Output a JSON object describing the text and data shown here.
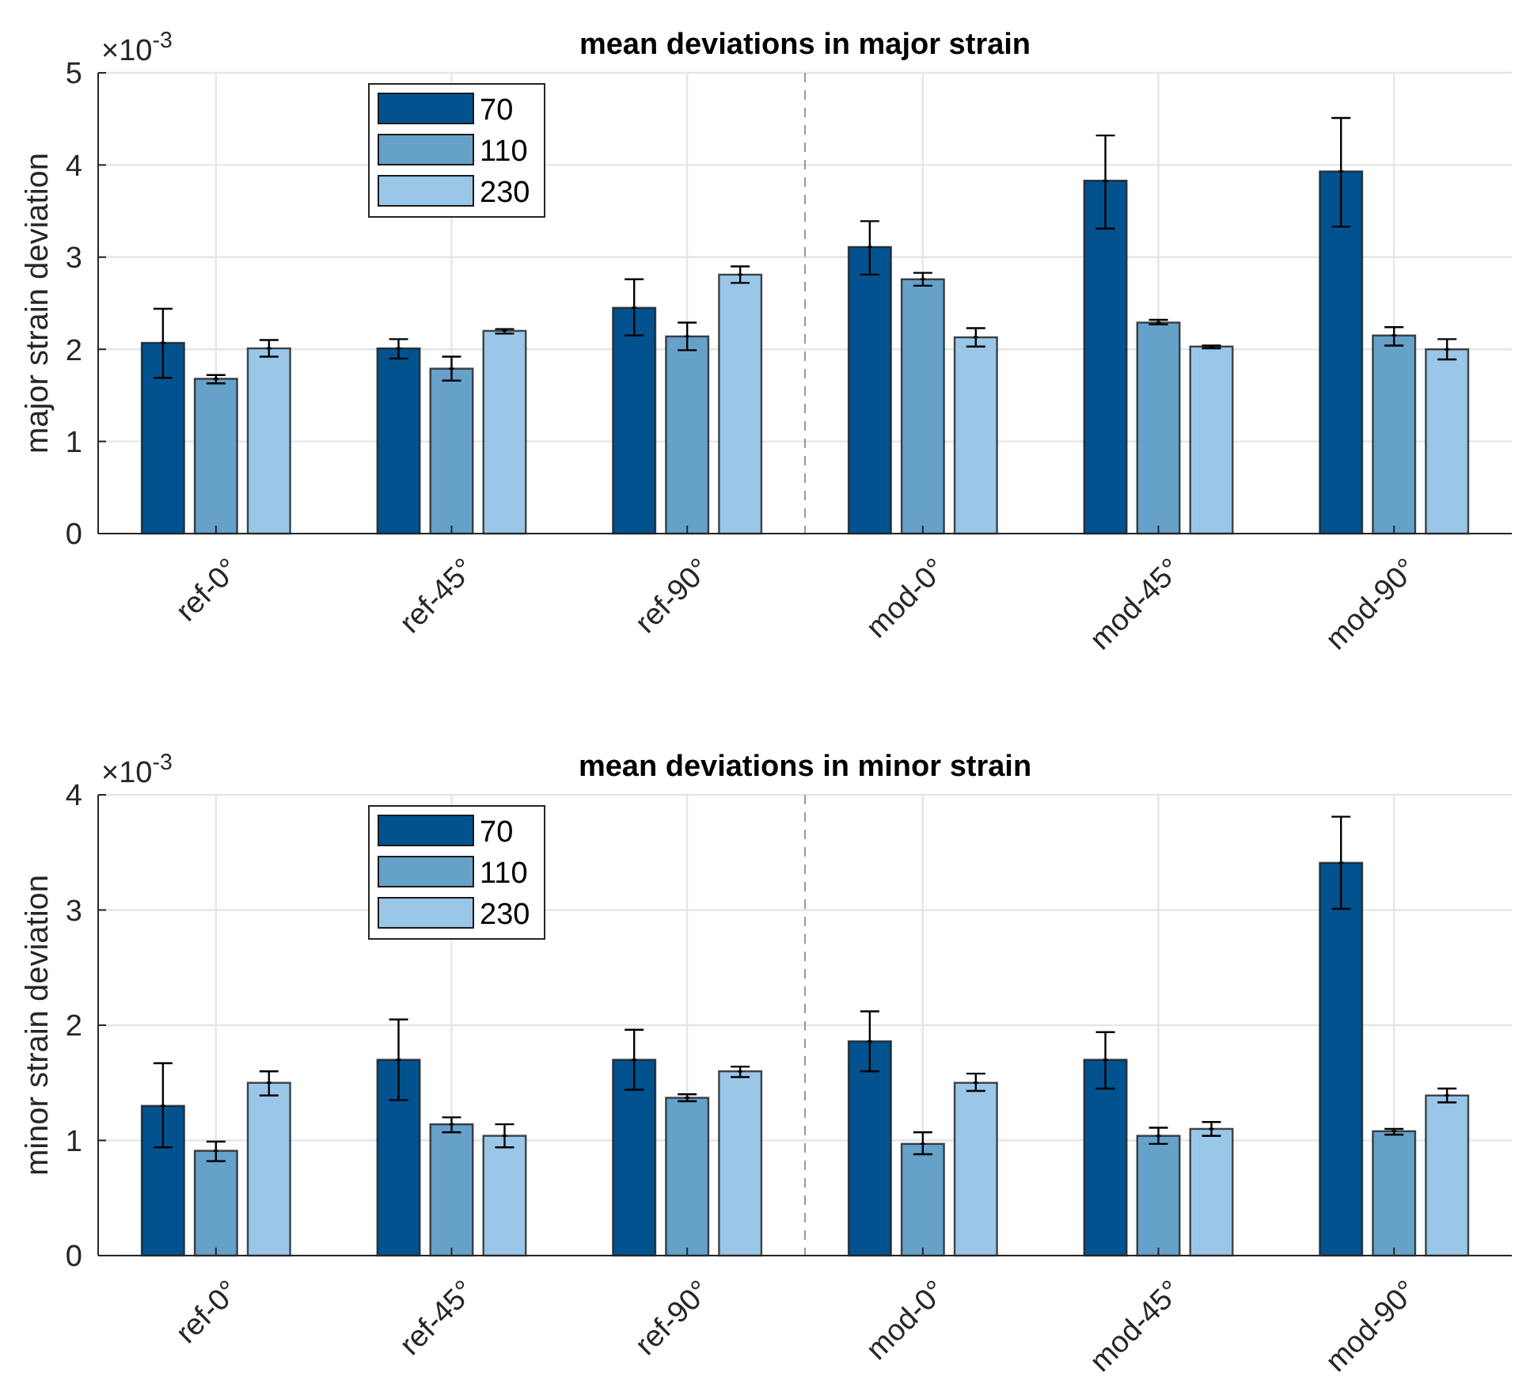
{
  "chart_data": [
    {
      "type": "bar",
      "title": "mean deviations in major strain",
      "ylabel": "major strain deviation",
      "annotations": [
        "×10$^{-3}$"
      ],
      "categories": [
        "ref-0°",
        "ref-45°",
        "ref-90°",
        "mod-0°",
        "mod-45°",
        "mod-90°"
      ],
      "series": [
        {
          "name": "70",
          "color": "#02528f",
          "values": [
            2.07,
            2.01,
            2.45,
            3.11,
            3.83,
            3.93
          ],
          "errors": [
            [
              1.69,
              2.44
            ],
            [
              1.9,
              2.11
            ],
            [
              2.15,
              2.76
            ],
            [
              2.81,
              3.39
            ],
            [
              3.31,
              4.32
            ],
            [
              3.33,
              4.51
            ]
          ]
        },
        {
          "name": "110",
          "color": "#65a1c9",
          "values": [
            1.68,
            1.79,
            2.14,
            2.76,
            2.29,
            2.15
          ],
          "errors": [
            [
              1.63,
              1.72
            ],
            [
              1.66,
              1.92
            ],
            [
              1.99,
              2.29
            ],
            [
              2.69,
              2.83
            ],
            [
              2.27,
              2.32
            ],
            [
              2.04,
              2.24
            ]
          ]
        },
        {
          "name": "230",
          "color": "#9ac6e8",
          "values": [
            2.01,
            2.2,
            2.81,
            2.13,
            2.03,
            2.0
          ],
          "errors": [
            [
              1.92,
              2.1
            ],
            [
              2.17,
              2.22
            ],
            [
              2.72,
              2.9
            ],
            [
              2.03,
              2.23
            ],
            [
              2.01,
              2.04
            ],
            [
              1.89,
              2.11
            ]
          ]
        }
      ],
      "ylim": [
        0,
        5
      ],
      "yticks": [
        0,
        1,
        2,
        3,
        4,
        5
      ],
      "grid": true,
      "legend": "top left"
    },
    {
      "type": "bar",
      "title": "mean deviations in minor strain",
      "ylabel": "minor strain deviation",
      "annotations": [
        "×10$^{-3}$"
      ],
      "categories": [
        "ref-0°",
        "ref-45°",
        "ref-90°",
        "mod-0°",
        "mod-45°",
        "mod-90°"
      ],
      "series": [
        {
          "name": "70",
          "color": "#02528f",
          "values": [
            1.3,
            1.7,
            1.7,
            1.86,
            1.7,
            3.41
          ],
          "errors": [
            [
              0.94,
              1.67
            ],
            [
              1.35,
              2.05
            ],
            [
              1.44,
              1.96
            ],
            [
              1.6,
              2.12
            ],
            [
              1.45,
              1.94
            ],
            [
              3.01,
              3.81
            ]
          ]
        },
        {
          "name": "110",
          "color": "#65a1c9",
          "values": [
            0.91,
            1.14,
            1.37,
            0.97,
            1.04,
            1.08
          ],
          "errors": [
            [
              0.82,
              0.99
            ],
            [
              1.07,
              1.2
            ],
            [
              1.34,
              1.4
            ],
            [
              0.88,
              1.07
            ],
            [
              0.97,
              1.11
            ],
            [
              1.05,
              1.1
            ]
          ]
        },
        {
          "name": "230",
          "color": "#9ac6e8",
          "values": [
            1.5,
            1.04,
            1.6,
            1.5,
            1.1,
            1.39
          ],
          "errors": [
            [
              1.39,
              1.6
            ],
            [
              0.94,
              1.14
            ],
            [
              1.55,
              1.64
            ],
            [
              1.43,
              1.58
            ],
            [
              1.04,
              1.16
            ],
            [
              1.33,
              1.45
            ]
          ]
        }
      ],
      "ylim": [
        0,
        4
      ],
      "yticks": [
        0,
        1,
        2,
        3,
        4
      ],
      "grid": true,
      "legend": "top left"
    }
  ]
}
